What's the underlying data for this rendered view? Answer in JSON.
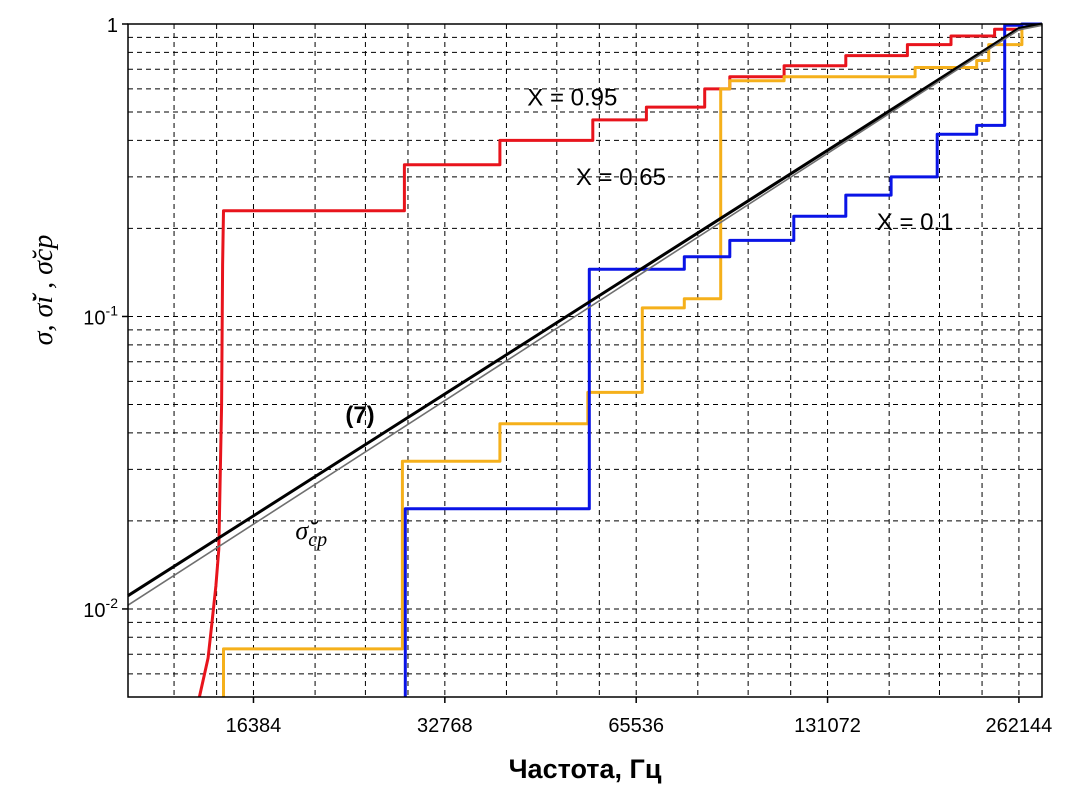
{
  "chart_data": {
    "type": "line",
    "xlabel": "Частота, Гц",
    "ylabel": "σ, σ̆i , σ̆cp",
    "x_scale": "log2",
    "y_scale": "log10",
    "xlim": [
      10400,
      285000
    ],
    "ylim": [
      0.005,
      1
    ],
    "x_ticks": [
      {
        "value": 16384,
        "label": "16384"
      },
      {
        "value": 32768,
        "label": "32768"
      },
      {
        "value": 65536,
        "label": "65536"
      },
      {
        "value": 131072,
        "label": "131072"
      },
      {
        "value": 262144,
        "label": "262144"
      }
    ],
    "y_ticks": [
      {
        "value": 0.01,
        "base": "10",
        "exp": "-2"
      },
      {
        "value": 0.1,
        "base": "10",
        "exp": "-1"
      },
      {
        "value": 1,
        "base": "1",
        "exp": ""
      }
    ],
    "grid": true,
    "series": [
      {
        "name": "X = 0.95",
        "color": "#e8141c",
        "points": [
          [
            13470,
            0.005
          ],
          [
            13900,
            0.0068
          ],
          [
            14100,
            0.009
          ],
          [
            14300,
            0.012
          ],
          [
            14450,
            0.016
          ],
          [
            14600,
            0.05
          ],
          [
            14650,
            0.15
          ],
          [
            14700,
            0.23
          ],
          [
            28300,
            0.23
          ],
          [
            28300,
            0.33
          ],
          [
            40000,
            0.33
          ],
          [
            40000,
            0.4
          ],
          [
            56000,
            0.4
          ],
          [
            56000,
            0.47
          ],
          [
            68000,
            0.47
          ],
          [
            68000,
            0.52
          ],
          [
            84000,
            0.52
          ],
          [
            84000,
            0.6
          ],
          [
            92000,
            0.6
          ],
          [
            92000,
            0.66
          ],
          [
            112000,
            0.66
          ],
          [
            112000,
            0.72
          ],
          [
            140000,
            0.72
          ],
          [
            140000,
            0.78
          ],
          [
            175000,
            0.78
          ],
          [
            175000,
            0.85
          ],
          [
            205000,
            0.85
          ],
          [
            205000,
            0.91
          ],
          [
            240000,
            0.91
          ],
          [
            240000,
            0.96
          ],
          [
            265000,
            0.96
          ],
          [
            265000,
            1.0
          ],
          [
            285000,
            1.0
          ]
        ]
      },
      {
        "name": "X = 0.65",
        "color": "#f5b01b",
        "points": [
          [
            14700,
            0.005
          ],
          [
            14700,
            0.0073
          ],
          [
            28100,
            0.0073
          ],
          [
            28100,
            0.032
          ],
          [
            40000,
            0.032
          ],
          [
            40000,
            0.043
          ],
          [
            55000,
            0.043
          ],
          [
            55000,
            0.055
          ],
          [
            67000,
            0.055
          ],
          [
            67000,
            0.107
          ],
          [
            78000,
            0.107
          ],
          [
            78000,
            0.115
          ],
          [
            89000,
            0.115
          ],
          [
            89000,
            0.6
          ],
          [
            92000,
            0.6
          ],
          [
            92000,
            0.64
          ],
          [
            112000,
            0.64
          ],
          [
            112000,
            0.66
          ],
          [
            180000,
            0.66
          ],
          [
            180000,
            0.71
          ],
          [
            225000,
            0.71
          ],
          [
            225000,
            0.75
          ],
          [
            235000,
            0.75
          ],
          [
            235000,
            0.85
          ],
          [
            265000,
            0.85
          ],
          [
            265000,
            1.0
          ],
          [
            285000,
            1.0
          ]
        ]
      },
      {
        "name": "X = 0.1",
        "color": "#0a14e6",
        "points": [
          [
            28400,
            0.005
          ],
          [
            28400,
            0.022
          ],
          [
            53800,
            0.022
          ],
          [
            55300,
            0.022
          ],
          [
            55300,
            0.145
          ],
          [
            78000,
            0.145
          ],
          [
            78000,
            0.16
          ],
          [
            92000,
            0.16
          ],
          [
            92000,
            0.182
          ],
          [
            116000,
            0.182
          ],
          [
            116000,
            0.22
          ],
          [
            140000,
            0.22
          ],
          [
            140000,
            0.26
          ],
          [
            165000,
            0.26
          ],
          [
            165000,
            0.3
          ],
          [
            195000,
            0.3
          ],
          [
            195000,
            0.42
          ],
          [
            225000,
            0.42
          ],
          [
            225000,
            0.45
          ],
          [
            249000,
            0.45
          ],
          [
            249000,
            0.99
          ],
          [
            265000,
            0.99
          ],
          [
            265000,
            1.0
          ],
          [
            285000,
            1.0
          ]
        ]
      },
      {
        "name": "(7)",
        "color": "#000000",
        "points": [
          [
            10400,
            0.0111
          ],
          [
            262144,
            0.965
          ],
          [
            285000,
            1.0
          ]
        ]
      },
      {
        "name": "σ̆cp",
        "color": "#6f6f6f",
        "points": [
          [
            10400,
            0.0103
          ],
          [
            262144,
            0.955
          ],
          [
            285000,
            0.99
          ]
        ]
      }
    ],
    "annotations": [
      {
        "text": "X = 0.95",
        "x": 52000,
        "y": 0.56
      },
      {
        "text": "X = 0.65",
        "x": 62000,
        "y": 0.3
      },
      {
        "text": "X = 0.1",
        "x": 180000,
        "y": 0.21
      },
      {
        "text": "(7)",
        "x": 24100,
        "y": 0.046
      },
      {
        "text": "σ̆",
        "sub": "cp",
        "x": 20200,
        "y": 0.0185
      }
    ]
  }
}
